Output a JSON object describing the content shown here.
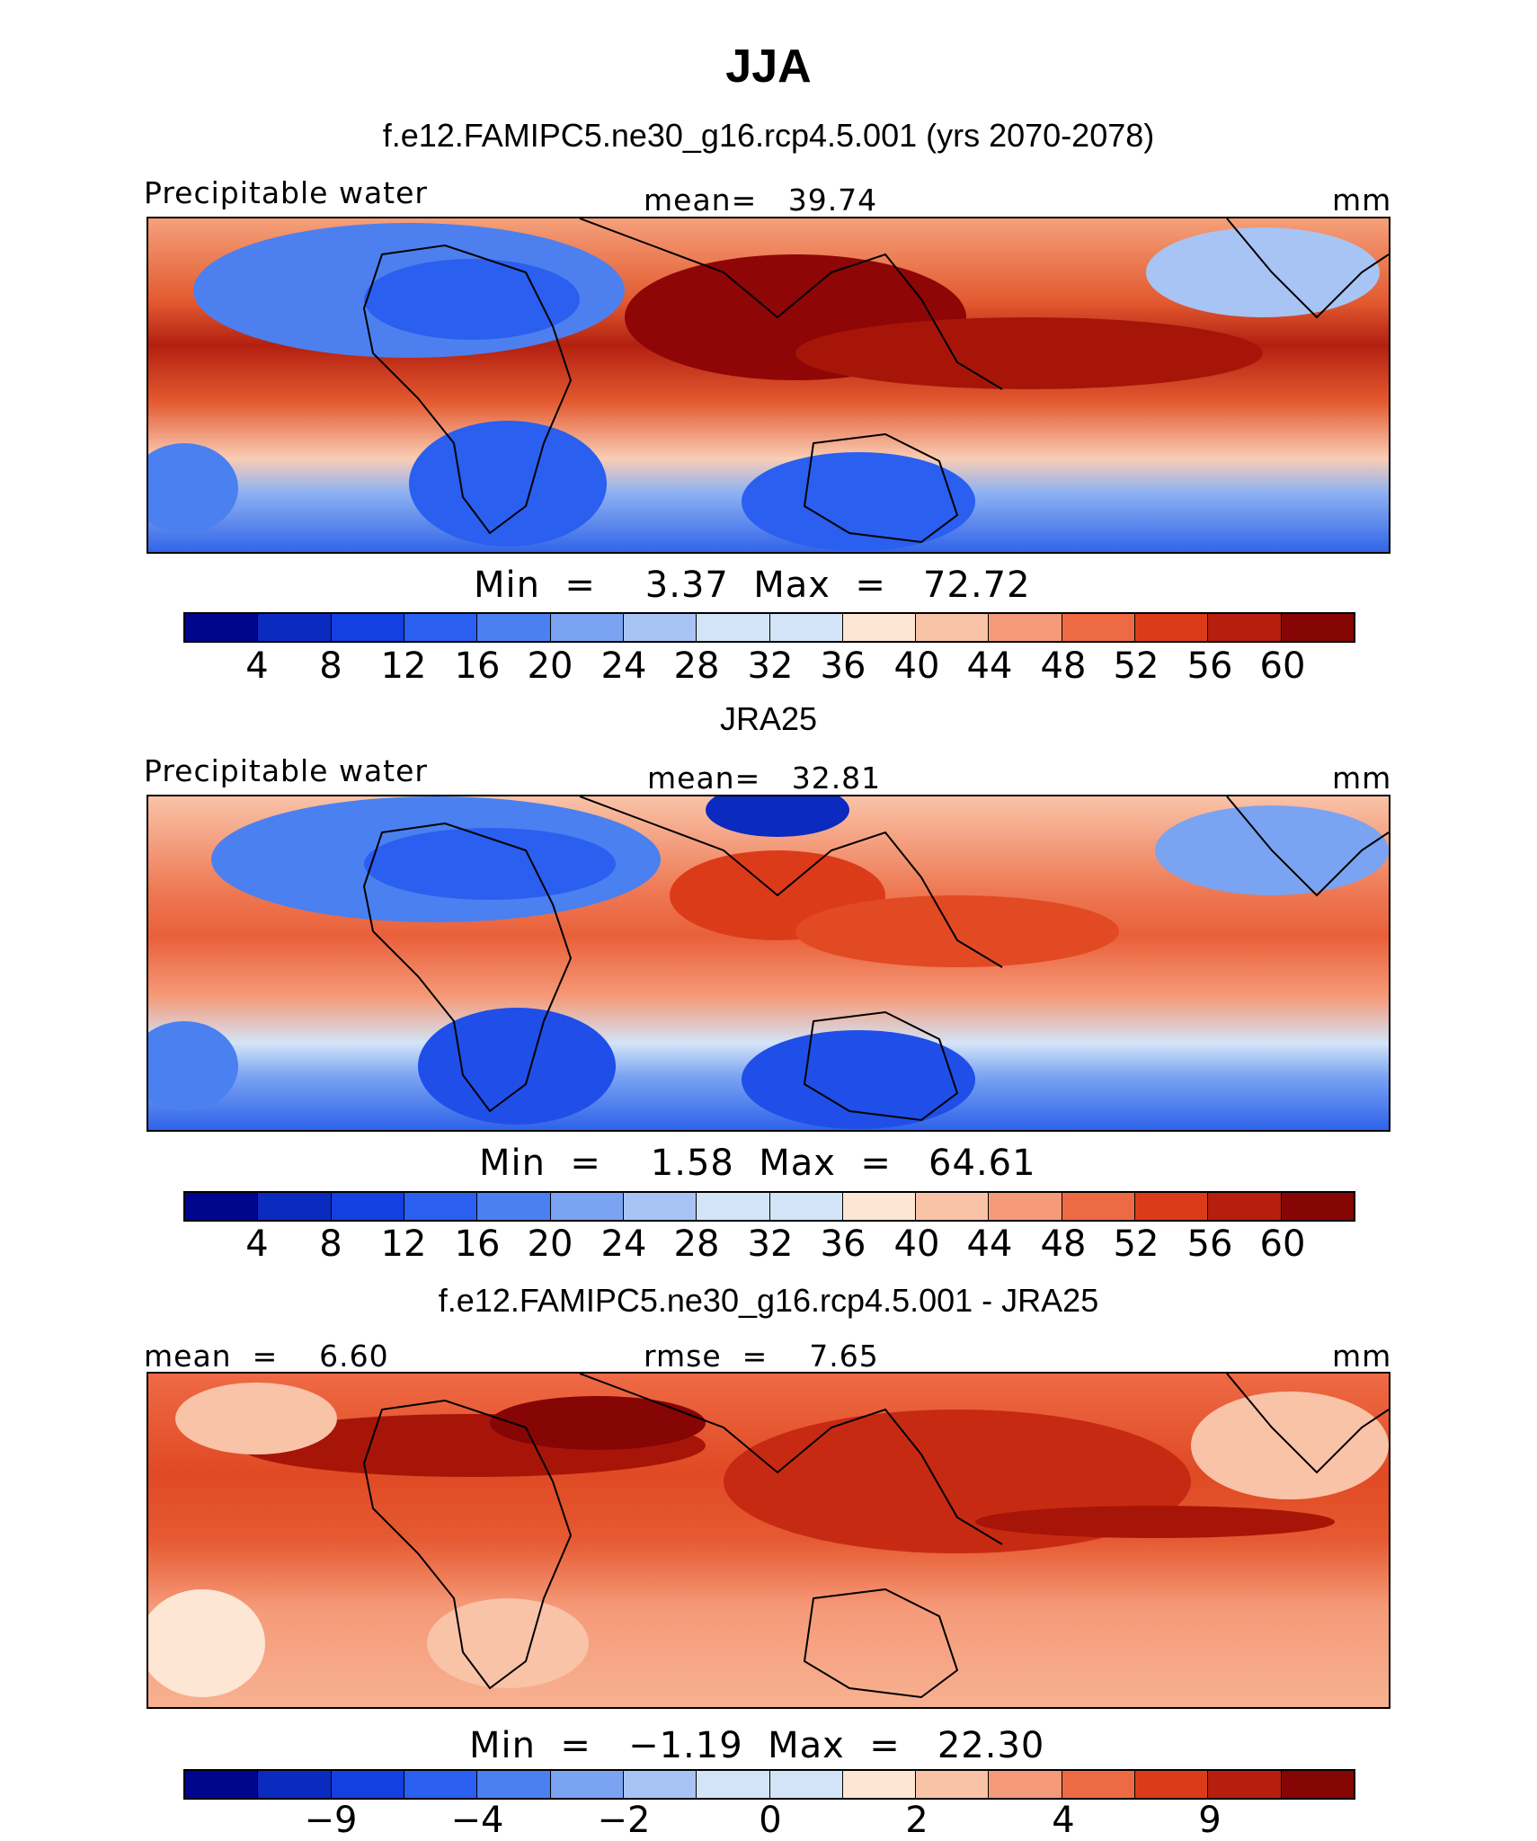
{
  "title": "JJA",
  "palette": [
    "#00068c",
    "#0a2ac0",
    "#1340e0",
    "#2a5ff0",
    "#4a80f0",
    "#7aa3f2",
    "#a8c4f5",
    "#d3e4f8",
    "#fde6d4",
    "#f9c3a8",
    "#f59a78",
    "#ee6a45",
    "#dc3b1a",
    "#b71e0e",
    "#860505"
  ],
  "panels": [
    {
      "title": "f.e12.FAMIPC5.ne30_g16.rcp4.5.001 (yrs 2070-2078)",
      "left_label": "Precipitable water",
      "center_label": "mean=   39.74",
      "right_label": "mm",
      "minmax": "Min  =    3.37  Max  =   72.72",
      "ticks": [
        "4",
        "8",
        "12",
        "16",
        "20",
        "24",
        "28",
        "32",
        "36",
        "40",
        "44",
        "48",
        "52",
        "56",
        "60"
      ]
    },
    {
      "title": "JRA25",
      "left_label": "Precipitable water",
      "center_label": "mean=   32.81",
      "right_label": "mm",
      "minmax": "Min  =    1.58  Max  =   64.61",
      "ticks": [
        "4",
        "8",
        "12",
        "16",
        "20",
        "24",
        "28",
        "32",
        "36",
        "40",
        "44",
        "48",
        "52",
        "56",
        "60"
      ]
    },
    {
      "title": "f.e12.FAMIPC5.ne30_g16.rcp4.5.001 - JRA25",
      "left_label": "mean  =    6.60",
      "center_label": "rmse  =    7.65",
      "right_label": "mm",
      "minmax": "Min  =   −1.19  Max  =   22.30",
      "ticks": [
        "−9",
        "−4",
        "−2",
        "0",
        "2",
        "4",
        "9"
      ]
    }
  ]
}
